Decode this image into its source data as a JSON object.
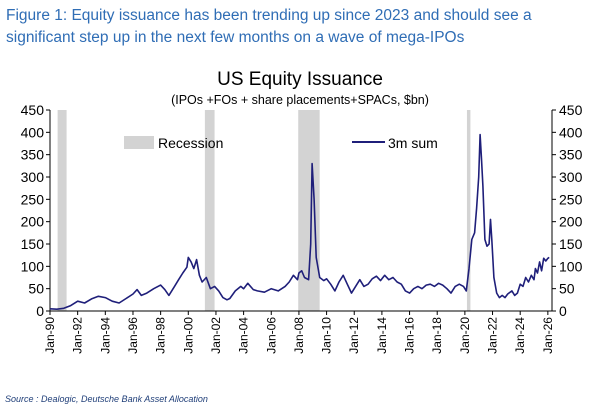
{
  "caption": "Figure 1: Equity issuance has been trending up since 2023 and should see a significant step up in the next few months on a wave of mega-IPOs",
  "source": "Source : Dealogic, Deutsche Bank Asset Allocation",
  "colors": {
    "caption": "#2f6db5",
    "line": "#1f1f7a",
    "recession": "#d3d3d3",
    "source": "#1f3e78"
  },
  "chart_data": {
    "type": "line",
    "title": "US Equity Issuance",
    "subtitle": "(IPOs +FOs + share placements+SPACs, $bn)",
    "xlabel": "",
    "ylabel": "",
    "ylim": [
      0,
      450
    ],
    "y2lim": [
      0,
      450
    ],
    "yticks": [
      "0",
      "50",
      "100",
      "150",
      "200",
      "250",
      "300",
      "350",
      "400",
      "450"
    ],
    "xticks": [
      "Jan-90",
      "Jan-92",
      "Jan-94",
      "Jan-96",
      "Jan-98",
      "Jan-00",
      "Jan-02",
      "Jan-04",
      "Jan-06",
      "Jan-08",
      "Jan-10",
      "Jan-12",
      "Jan-14",
      "Jan-16",
      "Jan-18",
      "Jan-20",
      "Jan-22",
      "Jan-24",
      "Jan-26"
    ],
    "grid": false,
    "legend": {
      "recession_label": "Recession",
      "series_label": "3m sum"
    },
    "recessions": [
      [
        1990.55,
        1991.2
      ],
      [
        2001.2,
        2001.9
      ],
      [
        2007.95,
        2009.5
      ],
      [
        2020.15,
        2020.4
      ]
    ],
    "series": [
      {
        "name": "3m sum",
        "points": [
          [
            1990.0,
            5
          ],
          [
            1990.5,
            4
          ],
          [
            1991.0,
            6
          ],
          [
            1991.5,
            12
          ],
          [
            1992.0,
            22
          ],
          [
            1992.5,
            18
          ],
          [
            1993.0,
            27
          ],
          [
            1993.5,
            33
          ],
          [
            1994.0,
            30
          ],
          [
            1994.5,
            22
          ],
          [
            1995.0,
            18
          ],
          [
            1995.5,
            28
          ],
          [
            1996.0,
            38
          ],
          [
            1996.3,
            48
          ],
          [
            1996.6,
            35
          ],
          [
            1997.0,
            40
          ],
          [
            1997.5,
            50
          ],
          [
            1998.0,
            58
          ],
          [
            1998.3,
            48
          ],
          [
            1998.6,
            35
          ],
          [
            1999.0,
            55
          ],
          [
            1999.3,
            70
          ],
          [
            1999.6,
            85
          ],
          [
            1999.9,
            98
          ],
          [
            2000.0,
            120
          ],
          [
            2000.2,
            110
          ],
          [
            2000.4,
            95
          ],
          [
            2000.6,
            115
          ],
          [
            2000.8,
            80
          ],
          [
            2001.0,
            65
          ],
          [
            2001.3,
            75
          ],
          [
            2001.6,
            50
          ],
          [
            2001.9,
            55
          ],
          [
            2002.2,
            45
          ],
          [
            2002.5,
            30
          ],
          [
            2002.8,
            25
          ],
          [
            2003.0,
            28
          ],
          [
            2003.4,
            45
          ],
          [
            2003.8,
            55
          ],
          [
            2004.0,
            50
          ],
          [
            2004.3,
            62
          ],
          [
            2004.7,
            48
          ],
          [
            2005.0,
            45
          ],
          [
            2005.5,
            42
          ],
          [
            2006.0,
            50
          ],
          [
            2006.5,
            45
          ],
          [
            2007.0,
            55
          ],
          [
            2007.3,
            65
          ],
          [
            2007.6,
            80
          ],
          [
            2007.9,
            70
          ],
          [
            2008.0,
            85
          ],
          [
            2008.2,
            90
          ],
          [
            2008.4,
            75
          ],
          [
            2008.7,
            70
          ],
          [
            2008.85,
            150
          ],
          [
            2008.95,
            330
          ],
          [
            2009.1,
            250
          ],
          [
            2009.25,
            120
          ],
          [
            2009.5,
            75
          ],
          [
            2009.8,
            68
          ],
          [
            2010.0,
            72
          ],
          [
            2010.3,
            60
          ],
          [
            2010.6,
            45
          ],
          [
            2010.9,
            65
          ],
          [
            2011.2,
            80
          ],
          [
            2011.5,
            60
          ],
          [
            2011.8,
            40
          ],
          [
            2012.1,
            55
          ],
          [
            2012.4,
            70
          ],
          [
            2012.7,
            55
          ],
          [
            2013.0,
            60
          ],
          [
            2013.3,
            72
          ],
          [
            2013.6,
            78
          ],
          [
            2013.9,
            68
          ],
          [
            2014.2,
            80
          ],
          [
            2014.5,
            70
          ],
          [
            2014.8,
            75
          ],
          [
            2015.1,
            65
          ],
          [
            2015.4,
            60
          ],
          [
            2015.7,
            45
          ],
          [
            2016.0,
            40
          ],
          [
            2016.3,
            50
          ],
          [
            2016.6,
            55
          ],
          [
            2016.9,
            50
          ],
          [
            2017.2,
            58
          ],
          [
            2017.5,
            60
          ],
          [
            2017.8,
            55
          ],
          [
            2018.1,
            62
          ],
          [
            2018.4,
            58
          ],
          [
            2018.7,
            50
          ],
          [
            2019.0,
            40
          ],
          [
            2019.3,
            55
          ],
          [
            2019.6,
            60
          ],
          [
            2019.9,
            55
          ],
          [
            2020.1,
            45
          ],
          [
            2020.3,
            95
          ],
          [
            2020.5,
            160
          ],
          [
            2020.7,
            175
          ],
          [
            2020.85,
            230
          ],
          [
            2021.0,
            300
          ],
          [
            2021.1,
            395
          ],
          [
            2021.2,
            340
          ],
          [
            2021.3,
            280
          ],
          [
            2021.45,
            160
          ],
          [
            2021.6,
            145
          ],
          [
            2021.75,
            150
          ],
          [
            2021.85,
            205
          ],
          [
            2021.95,
            160
          ],
          [
            2022.1,
            75
          ],
          [
            2022.3,
            40
          ],
          [
            2022.5,
            30
          ],
          [
            2022.7,
            35
          ],
          [
            2022.9,
            30
          ],
          [
            2023.1,
            38
          ],
          [
            2023.4,
            45
          ],
          [
            2023.6,
            35
          ],
          [
            2023.8,
            40
          ],
          [
            2024.0,
            60
          ],
          [
            2024.2,
            55
          ],
          [
            2024.4,
            75
          ],
          [
            2024.6,
            65
          ],
          [
            2024.8,
            80
          ],
          [
            2025.0,
            70
          ],
          [
            2025.1,
            95
          ],
          [
            2025.25,
            85
          ],
          [
            2025.4,
            110
          ],
          [
            2025.55,
            90
          ],
          [
            2025.7,
            118
          ],
          [
            2025.85,
            112
          ],
          [
            2026.0,
            118
          ],
          [
            2026.1,
            120
          ]
        ]
      }
    ]
  }
}
